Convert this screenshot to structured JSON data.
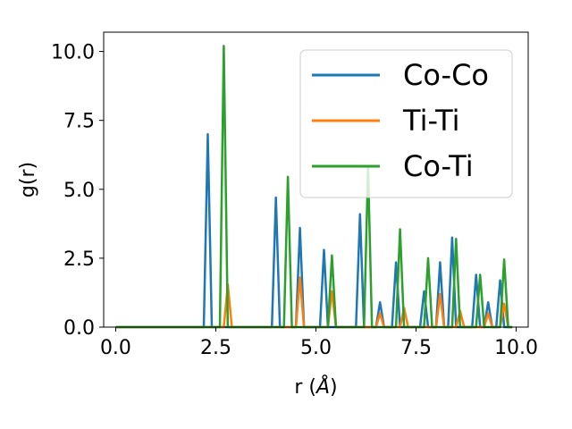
{
  "chart_data": {
    "type": "line",
    "xlabel": "r (",
    "xlabel_unit": "Å",
    "xlabel_close": ")",
    "ylabel": "g(r)",
    "xlim": [
      -0.3,
      10.3
    ],
    "ylim": [
      0,
      10.7
    ],
    "xticks": [
      0.0,
      2.5,
      5.0,
      7.5,
      10.0
    ],
    "xtick_labels": [
      "0.0",
      "2.5",
      "5.0",
      "7.5",
      "10.0"
    ],
    "yticks": [
      0.0,
      2.5,
      5.0,
      7.5,
      10.0
    ],
    "ytick_labels": [
      "0.0",
      "2.5",
      "5.0",
      "7.5",
      "10.0"
    ],
    "grid": false,
    "legend_position": "top-right",
    "peak_half_width": 0.1,
    "x_range": [
      0.0,
      9.9
    ],
    "series": [
      {
        "name": "Co-Co",
        "color": "#1f77b4",
        "peaks": [
          {
            "r": 2.3,
            "g": 7.0
          },
          {
            "r": 4.0,
            "g": 4.7
          },
          {
            "r": 4.6,
            "g": 3.6
          },
          {
            "r": 5.2,
            "g": 2.8
          },
          {
            "r": 6.1,
            "g": 4.1
          },
          {
            "r": 6.6,
            "g": 0.9
          },
          {
            "r": 7.0,
            "g": 2.35
          },
          {
            "r": 7.7,
            "g": 1.3
          },
          {
            "r": 8.1,
            "g": 2.35
          },
          {
            "r": 8.4,
            "g": 3.25
          },
          {
            "r": 9.0,
            "g": 1.9
          },
          {
            "r": 9.3,
            "g": 0.9
          },
          {
            "r": 9.6,
            "g": 1.7
          }
        ]
      },
      {
        "name": "Ti-Ti",
        "color": "#ff7f0e",
        "peaks": [
          {
            "r": 2.8,
            "g": 1.55
          },
          {
            "r": 4.6,
            "g": 1.8
          },
          {
            "r": 5.4,
            "g": 1.3
          },
          {
            "r": 6.6,
            "g": 0.5
          },
          {
            "r": 7.2,
            "g": 0.7
          },
          {
            "r": 8.1,
            "g": 1.2
          },
          {
            "r": 8.6,
            "g": 0.6
          },
          {
            "r": 9.3,
            "g": 0.5
          },
          {
            "r": 9.7,
            "g": 0.85
          }
        ]
      },
      {
        "name": "Co-Ti",
        "color": "#2ca02c",
        "peaks": [
          {
            "r": 2.7,
            "g": 10.2
          },
          {
            "r": 4.3,
            "g": 5.45
          },
          {
            "r": 5.4,
            "g": 2.6
          },
          {
            "r": 6.3,
            "g": 5.8
          },
          {
            "r": 7.1,
            "g": 3.55
          },
          {
            "r": 7.8,
            "g": 2.5
          },
          {
            "r": 8.5,
            "g": 3.2
          },
          {
            "r": 9.1,
            "g": 1.9
          },
          {
            "r": 9.7,
            "g": 2.45
          }
        ]
      }
    ]
  }
}
